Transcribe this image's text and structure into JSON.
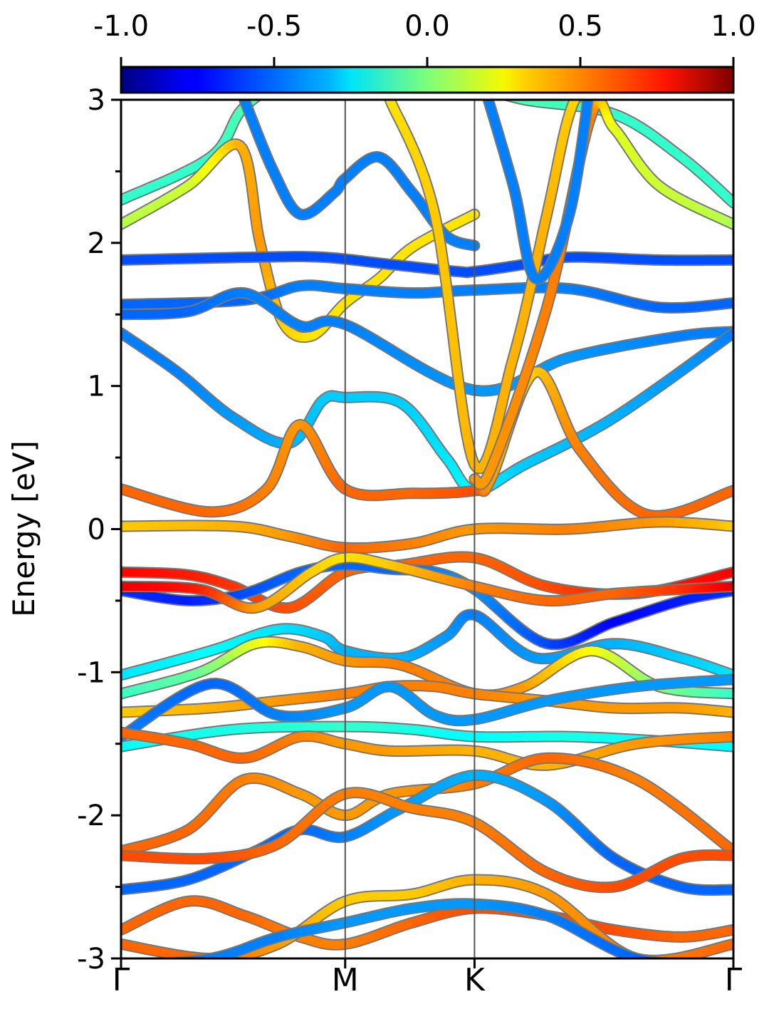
{
  "chart_data": {
    "type": "line",
    "title": "",
    "xlabel": "",
    "ylabel": "Energy [eV]",
    "ylim": [
      -3,
      3
    ],
    "yticks": [
      "-3",
      "-2",
      "-1",
      "0",
      "1",
      "2",
      "3"
    ],
    "yticks_values": [
      -3,
      -2,
      -1,
      0,
      1,
      2,
      3
    ],
    "x_kpoints": [
      {
        "label": "Γ",
        "x": 0.0
      },
      {
        "label": "M",
        "x": 1.0
      },
      {
        "label": "K",
        "x": 1.577
      },
      {
        "label": "Γ",
        "x": 2.732
      }
    ],
    "xlim": [
      0.0,
      2.732
    ],
    "colorbar": {
      "colormap": "jet",
      "range": [
        -1.0,
        1.0
      ],
      "tick_values": [
        -1.0,
        -0.5,
        0.0,
        0.5,
        1.0
      ],
      "tick_labels": [
        "-1.0",
        "-0.5",
        "0.0",
        "0.5",
        "1.0"
      ],
      "position": "top"
    },
    "series": [
      {
        "x": [
          0,
          0.4,
          0.55,
          0.8,
          1.0,
          1.3,
          1.577,
          1.8,
          2.2,
          2.5,
          2.732
        ],
        "y": [
          2.3,
          2.6,
          2.95,
          3.2,
          3.3,
          3.2,
          3.1,
          3.0,
          2.9,
          2.6,
          2.28
        ],
        "c": [
          -0.15,
          -0.15,
          -0.1,
          -0.1,
          -0.15,
          -0.1,
          -0.1,
          -0.1,
          -0.15,
          -0.15,
          -0.15
        ]
      },
      {
        "x": [
          0,
          0.3,
          0.53,
          0.62,
          0.72,
          0.85,
          1.0,
          1.15,
          1.3,
          1.577
        ],
        "y": [
          2.13,
          2.4,
          2.68,
          2.0,
          1.45,
          1.35,
          1.58,
          1.75,
          1.97,
          2.2
        ],
        "c": [
          0.1,
          0.15,
          0.4,
          0.45,
          0.35,
          0.3,
          0.3,
          0.3,
          0.3,
          0.3
        ]
      },
      {
        "x": [
          0.55,
          0.68,
          0.8,
          0.95,
          1.0,
          1.15,
          1.3,
          1.45,
          1.577
        ],
        "y": [
          3.0,
          2.5,
          2.2,
          2.35,
          2.45,
          2.6,
          2.35,
          2.05,
          1.98
        ],
        "c": [
          -0.5,
          -0.5,
          -0.5,
          -0.5,
          -0.5,
          -0.5,
          -0.5,
          -0.5,
          -0.5
        ]
      },
      {
        "x": [
          0,
          0.6,
          0.9,
          1.2,
          1.5,
          1.577,
          1.8,
          2.0,
          2.4,
          2.732
        ],
        "y": [
          1.88,
          1.9,
          1.9,
          1.85,
          1.8,
          1.8,
          1.85,
          1.9,
          1.88,
          1.88
        ],
        "c": [
          -0.6,
          -0.6,
          -0.6,
          -0.6,
          -0.6,
          -0.6,
          -0.6,
          -0.6,
          -0.6,
          -0.6
        ]
      },
      {
        "x": [
          0,
          0.55,
          0.8,
          1.0,
          1.3,
          1.577,
          2.0,
          2.4,
          2.732
        ],
        "y": [
          1.57,
          1.6,
          1.7,
          1.68,
          1.65,
          1.67,
          1.68,
          1.55,
          1.58
        ],
        "c": [
          -0.55,
          -0.55,
          -0.5,
          -0.5,
          -0.5,
          -0.5,
          -0.5,
          -0.55,
          -0.55
        ]
      },
      {
        "x": [
          0,
          0.3,
          0.55,
          0.8,
          1.0,
          1.577,
          2.0,
          2.5,
          2.732
        ],
        "y": [
          1.5,
          1.52,
          1.65,
          1.42,
          1.43,
          0.97,
          1.2,
          1.35,
          1.38
        ],
        "c": [
          -0.55,
          -0.55,
          -0.5,
          -0.5,
          -0.5,
          -0.45,
          -0.45,
          -0.5,
          -0.5
        ]
      },
      {
        "x": [
          0,
          0.25,
          0.5,
          0.75,
          0.9,
          1.0,
          1.25,
          1.45,
          1.577,
          1.8,
          2.2,
          2.732
        ],
        "y": [
          1.37,
          1.1,
          0.78,
          0.6,
          0.9,
          0.92,
          0.88,
          0.5,
          0.27,
          0.45,
          0.78,
          1.37
        ],
        "c": [
          -0.5,
          -0.5,
          -0.45,
          -0.4,
          -0.35,
          -0.35,
          -0.35,
          -0.3,
          -0.25,
          -0.35,
          -0.4,
          -0.5
        ]
      },
      {
        "x": [
          0,
          0.4,
          0.65,
          0.8,
          1.0,
          1.3,
          1.577,
          1.65,
          1.85,
          2.05,
          2.35,
          2.732
        ],
        "y": [
          0.28,
          0.12,
          0.28,
          0.73,
          0.28,
          0.25,
          0.27,
          0.35,
          1.1,
          0.55,
          0.1,
          0.27
        ],
        "c": [
          0.55,
          0.55,
          0.5,
          0.45,
          0.55,
          0.55,
          0.6,
          0.45,
          0.35,
          0.5,
          0.55,
          0.55
        ]
      },
      {
        "x": [
          0,
          0.5,
          0.75,
          1.0,
          1.3,
          1.577,
          2.0,
          2.4,
          2.732
        ],
        "y": [
          0.02,
          0.02,
          -0.05,
          -0.13,
          -0.1,
          0.0,
          0.0,
          0.05,
          0.02
        ],
        "c": [
          0.35,
          0.4,
          0.45,
          0.55,
          0.5,
          0.45,
          0.5,
          0.45,
          0.35
        ]
      },
      {
        "x": [
          0,
          0.3,
          0.5,
          0.75,
          1.0,
          1.25,
          1.577,
          1.9,
          2.3,
          2.732
        ],
        "y": [
          -0.3,
          -0.32,
          -0.4,
          -0.55,
          -0.3,
          -0.25,
          -0.2,
          -0.4,
          -0.45,
          -0.3
        ],
        "c": [
          0.75,
          0.7,
          0.65,
          0.6,
          0.55,
          0.55,
          0.55,
          0.6,
          0.7,
          0.75
        ]
      },
      {
        "x": [
          0,
          0.3,
          0.55,
          0.8,
          1.0,
          1.2,
          1.4,
          1.577,
          1.9,
          2.2,
          2.5,
          2.732
        ],
        "y": [
          -0.43,
          -0.5,
          -0.45,
          -0.3,
          -0.25,
          -0.28,
          -0.3,
          -0.42,
          -0.8,
          -0.65,
          -0.5,
          -0.43
        ],
        "c": [
          -0.65,
          -0.7,
          -0.6,
          -0.55,
          -0.55,
          -0.55,
          -0.5,
          -0.45,
          -0.6,
          -0.75,
          -0.7,
          -0.65
        ]
      },
      {
        "x": [
          0,
          0.35,
          0.6,
          0.85,
          1.0,
          1.2,
          1.577,
          1.9,
          2.2,
          2.5,
          2.732
        ],
        "y": [
          -0.4,
          -0.42,
          -0.55,
          -0.3,
          -0.2,
          -0.25,
          -0.4,
          -0.5,
          -0.45,
          -0.42,
          -0.4
        ],
        "c": [
          0.8,
          0.7,
          0.45,
          0.35,
          0.3,
          0.35,
          0.5,
          0.55,
          0.55,
          0.65,
          0.8
        ]
      },
      {
        "x": [
          0,
          0.4,
          0.7,
          0.9,
          1.0,
          1.25,
          1.45,
          1.577,
          1.85,
          2.2,
          2.5,
          2.732
        ],
        "y": [
          -1.02,
          -0.85,
          -0.7,
          -0.75,
          -0.85,
          -0.9,
          -0.75,
          -0.6,
          -0.9,
          -0.8,
          -0.9,
          -1.02
        ],
        "c": [
          -0.3,
          -0.25,
          -0.3,
          -0.35,
          -0.4,
          -0.4,
          -0.45,
          -0.5,
          -0.45,
          -0.4,
          -0.35,
          -0.3
        ]
      },
      {
        "x": [
          0,
          0.35,
          0.6,
          0.8,
          1.0,
          1.25,
          1.577,
          1.8,
          2.1,
          2.4,
          2.732
        ],
        "y": [
          -1.15,
          -1.0,
          -0.8,
          -0.82,
          -0.92,
          -0.95,
          -1.15,
          -1.1,
          -0.85,
          -1.1,
          -1.15
        ],
        "c": [
          -0.15,
          -0.05,
          0.2,
          0.4,
          0.45,
          0.5,
          0.5,
          0.45,
          0.25,
          0.0,
          -0.15
        ]
      },
      {
        "x": [
          0,
          0.4,
          0.7,
          1.0,
          1.2,
          1.4,
          1.577,
          1.9,
          2.2,
          2.5,
          2.732
        ],
        "y": [
          -1.28,
          -1.25,
          -1.2,
          -1.15,
          -1.1,
          -1.1,
          -1.15,
          -1.2,
          -1.25,
          -1.25,
          -1.28
        ],
        "c": [
          0.35,
          0.4,
          0.45,
          0.5,
          0.5,
          0.5,
          0.5,
          0.45,
          0.45,
          0.45,
          0.4
        ]
      },
      {
        "x": [
          0,
          0.4,
          0.7,
          1.0,
          1.2,
          1.4,
          1.577,
          1.9,
          2.3,
          2.732
        ],
        "y": [
          -1.45,
          -1.08,
          -1.3,
          -1.25,
          -1.1,
          -1.3,
          -1.33,
          -1.2,
          -1.1,
          -1.05
        ],
        "c": [
          -0.5,
          -0.55,
          -0.5,
          -0.45,
          -0.45,
          -0.45,
          -0.45,
          -0.45,
          -0.45,
          -0.45
        ]
      },
      {
        "x": [
          0,
          0.5,
          1.0,
          1.3,
          1.577,
          2.0,
          2.4,
          2.732
        ],
        "y": [
          -1.52,
          -1.4,
          -1.38,
          -1.4,
          -1.45,
          -1.45,
          -1.48,
          -1.52
        ],
        "c": [
          -0.25,
          -0.2,
          -0.15,
          -0.2,
          -0.25,
          -0.2,
          -0.25,
          -0.25
        ]
      },
      {
        "x": [
          0,
          0.3,
          0.55,
          0.8,
          1.0,
          1.2,
          1.577,
          1.9,
          2.3,
          2.732
        ],
        "y": [
          -1.42,
          -1.5,
          -1.6,
          -1.45,
          -1.5,
          -1.55,
          -1.55,
          -1.65,
          -1.5,
          -1.45
        ],
        "c": [
          0.55,
          0.55,
          0.55,
          0.5,
          0.45,
          0.45,
          0.4,
          0.4,
          0.45,
          0.5
        ]
      },
      {
        "x": [
          0,
          0.3,
          0.55,
          0.8,
          1.0,
          1.2,
          1.577,
          1.9,
          2.3,
          2.732
        ],
        "y": [
          -2.25,
          -2.1,
          -1.75,
          -1.85,
          -2.0,
          -1.85,
          -1.78,
          -1.6,
          -1.75,
          -2.25
        ],
        "c": [
          0.55,
          0.55,
          0.5,
          0.45,
          0.45,
          0.45,
          0.5,
          0.55,
          0.5,
          0.55
        ]
      },
      {
        "x": [
          0,
          0.3,
          0.6,
          0.8,
          1.0,
          1.25,
          1.577,
          1.9,
          2.2,
          2.5,
          2.732
        ],
        "y": [
          -2.52,
          -2.45,
          -2.25,
          -2.1,
          -2.15,
          -1.95,
          -1.72,
          -1.9,
          -2.3,
          -2.5,
          -2.52
        ],
        "c": [
          -0.55,
          -0.55,
          -0.55,
          -0.55,
          -0.5,
          -0.45,
          -0.4,
          -0.45,
          -0.55,
          -0.55,
          -0.55
        ]
      },
      {
        "x": [
          0,
          0.4,
          0.7,
          1.0,
          1.3,
          1.577,
          1.9,
          2.2,
          2.5,
          2.732
        ],
        "y": [
          -2.28,
          -2.3,
          -2.2,
          -1.85,
          -1.95,
          -2.05,
          -2.4,
          -2.5,
          -2.3,
          -2.28
        ],
        "c": [
          0.6,
          0.6,
          0.55,
          0.5,
          0.5,
          0.5,
          0.55,
          0.6,
          0.6,
          0.6
        ]
      },
      {
        "x": [
          0,
          0.3,
          0.55,
          0.8,
          1.0,
          1.3,
          1.577,
          1.9,
          2.2,
          2.5,
          2.732
        ],
        "y": [
          -2.8,
          -2.6,
          -2.7,
          -2.85,
          -2.9,
          -2.75,
          -2.65,
          -2.7,
          -2.8,
          -2.85,
          -2.8
        ],
        "c": [
          0.55,
          0.55,
          0.55,
          0.5,
          0.5,
          0.55,
          0.6,
          0.6,
          0.6,
          0.55,
          0.55
        ]
      },
      {
        "x": [
          0,
          0.4,
          0.7,
          1.0,
          1.3,
          1.577,
          1.9,
          2.3,
          2.732
        ],
        "y": [
          -2.9,
          -3.0,
          -2.9,
          -2.6,
          -2.55,
          -2.45,
          -2.55,
          -3.0,
          -2.9
        ],
        "c": [
          0.55,
          0.55,
          0.45,
          0.35,
          0.35,
          0.4,
          0.45,
          0.5,
          0.55
        ]
      },
      {
        "x": [
          0,
          0.4,
          0.7,
          1.0,
          1.3,
          1.577,
          1.9,
          2.3,
          2.732
        ],
        "y": [
          -3.05,
          -3.0,
          -2.85,
          -2.75,
          -2.65,
          -2.62,
          -2.7,
          -3.0,
          -3.05
        ],
        "c": [
          -0.55,
          -0.5,
          -0.5,
          -0.45,
          -0.45,
          -0.45,
          -0.5,
          -0.55,
          -0.55
        ]
      },
      {
        "x": [
          1.2,
          1.4,
          1.577,
          1.75,
          1.9,
          2.0,
          2.1
        ],
        "y": [
          3.0,
          2.2,
          0.45,
          1.2,
          2.2,
          2.9,
          3.2
        ],
        "c": [
          0.3,
          0.35,
          0.4,
          0.4,
          0.4,
          0.35,
          0.3
        ]
      },
      {
        "x": [
          1.577,
          1.65,
          1.9,
          2.1,
          2.2,
          2.4,
          2.732
        ],
        "y": [
          0.35,
          0.42,
          1.55,
          2.9,
          2.8,
          2.4,
          2.13
        ],
        "c": [
          0.45,
          0.45,
          0.5,
          0.5,
          0.2,
          0.15,
          0.1
        ]
      },
      {
        "x": [
          1.6,
          1.75,
          1.85,
          2.0,
          2.1
        ],
        "y": [
          3.2,
          2.4,
          1.75,
          2.2,
          3.2
        ],
        "c": [
          -0.5,
          -0.5,
          -0.5,
          -0.5,
          -0.5
        ]
      }
    ]
  }
}
